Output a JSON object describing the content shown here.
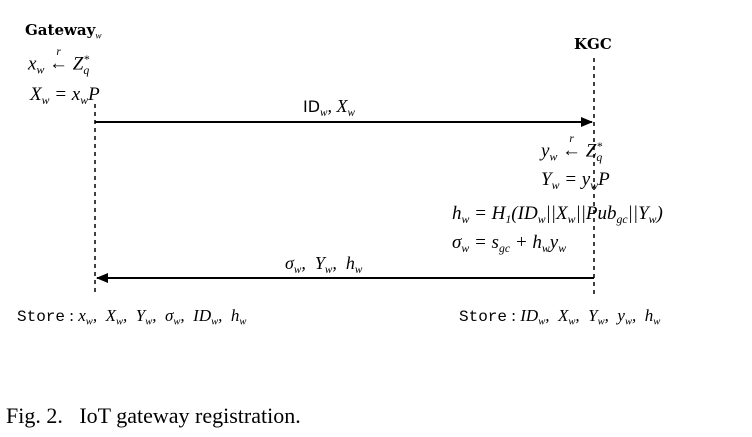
{
  "gateway": {
    "title": "Gateway",
    "title_sub": "w",
    "eq1": "x_w ← Z_q*",
    "eq2": "X_w = x_w P",
    "store": "Store : x_w, X_w, Y_w, σ_w, ID_w, h_w"
  },
  "kgc": {
    "title": "KGC",
    "eq1": "y_w ← Z_q*",
    "eq2": "Y_w = y_w P",
    "eq3": "h_w = H_1(ID_w||X_w||Pub_gc||Y_w)",
    "eq4": "σ_w = s_gc + h_w y_w",
    "store": "Store : ID_w, X_w, Y_w, y_w, h_w"
  },
  "messages": {
    "to_kgc": "ID_w, X_w",
    "to_gateway": "σ_w, Y_w, h_w"
  },
  "random_marker": "r",
  "caption": "Fig. 2.   IoT gateway registration."
}
